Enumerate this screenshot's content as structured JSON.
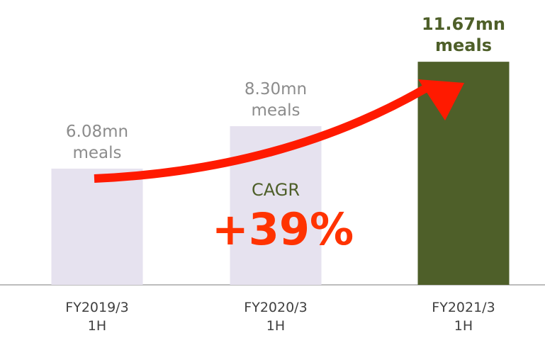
{
  "chart_data": {
    "type": "bar",
    "categories": [
      "FY2019/3\n1H",
      "FY2020/3\n1H",
      "FY2021/3\n1H"
    ],
    "values": [
      6.08,
      8.3,
      11.67
    ],
    "value_labels": [
      "6.08mn\nmeals",
      "8.30mn\nmeals",
      "11.67mn\nmeals"
    ],
    "colors": [
      "#e6e2ef",
      "#e6e2ef",
      "#4e5f29"
    ],
    "ylim": [
      0,
      14.9
    ],
    "annotations": {
      "label": "CAGR",
      "growth": "+39%"
    }
  }
}
